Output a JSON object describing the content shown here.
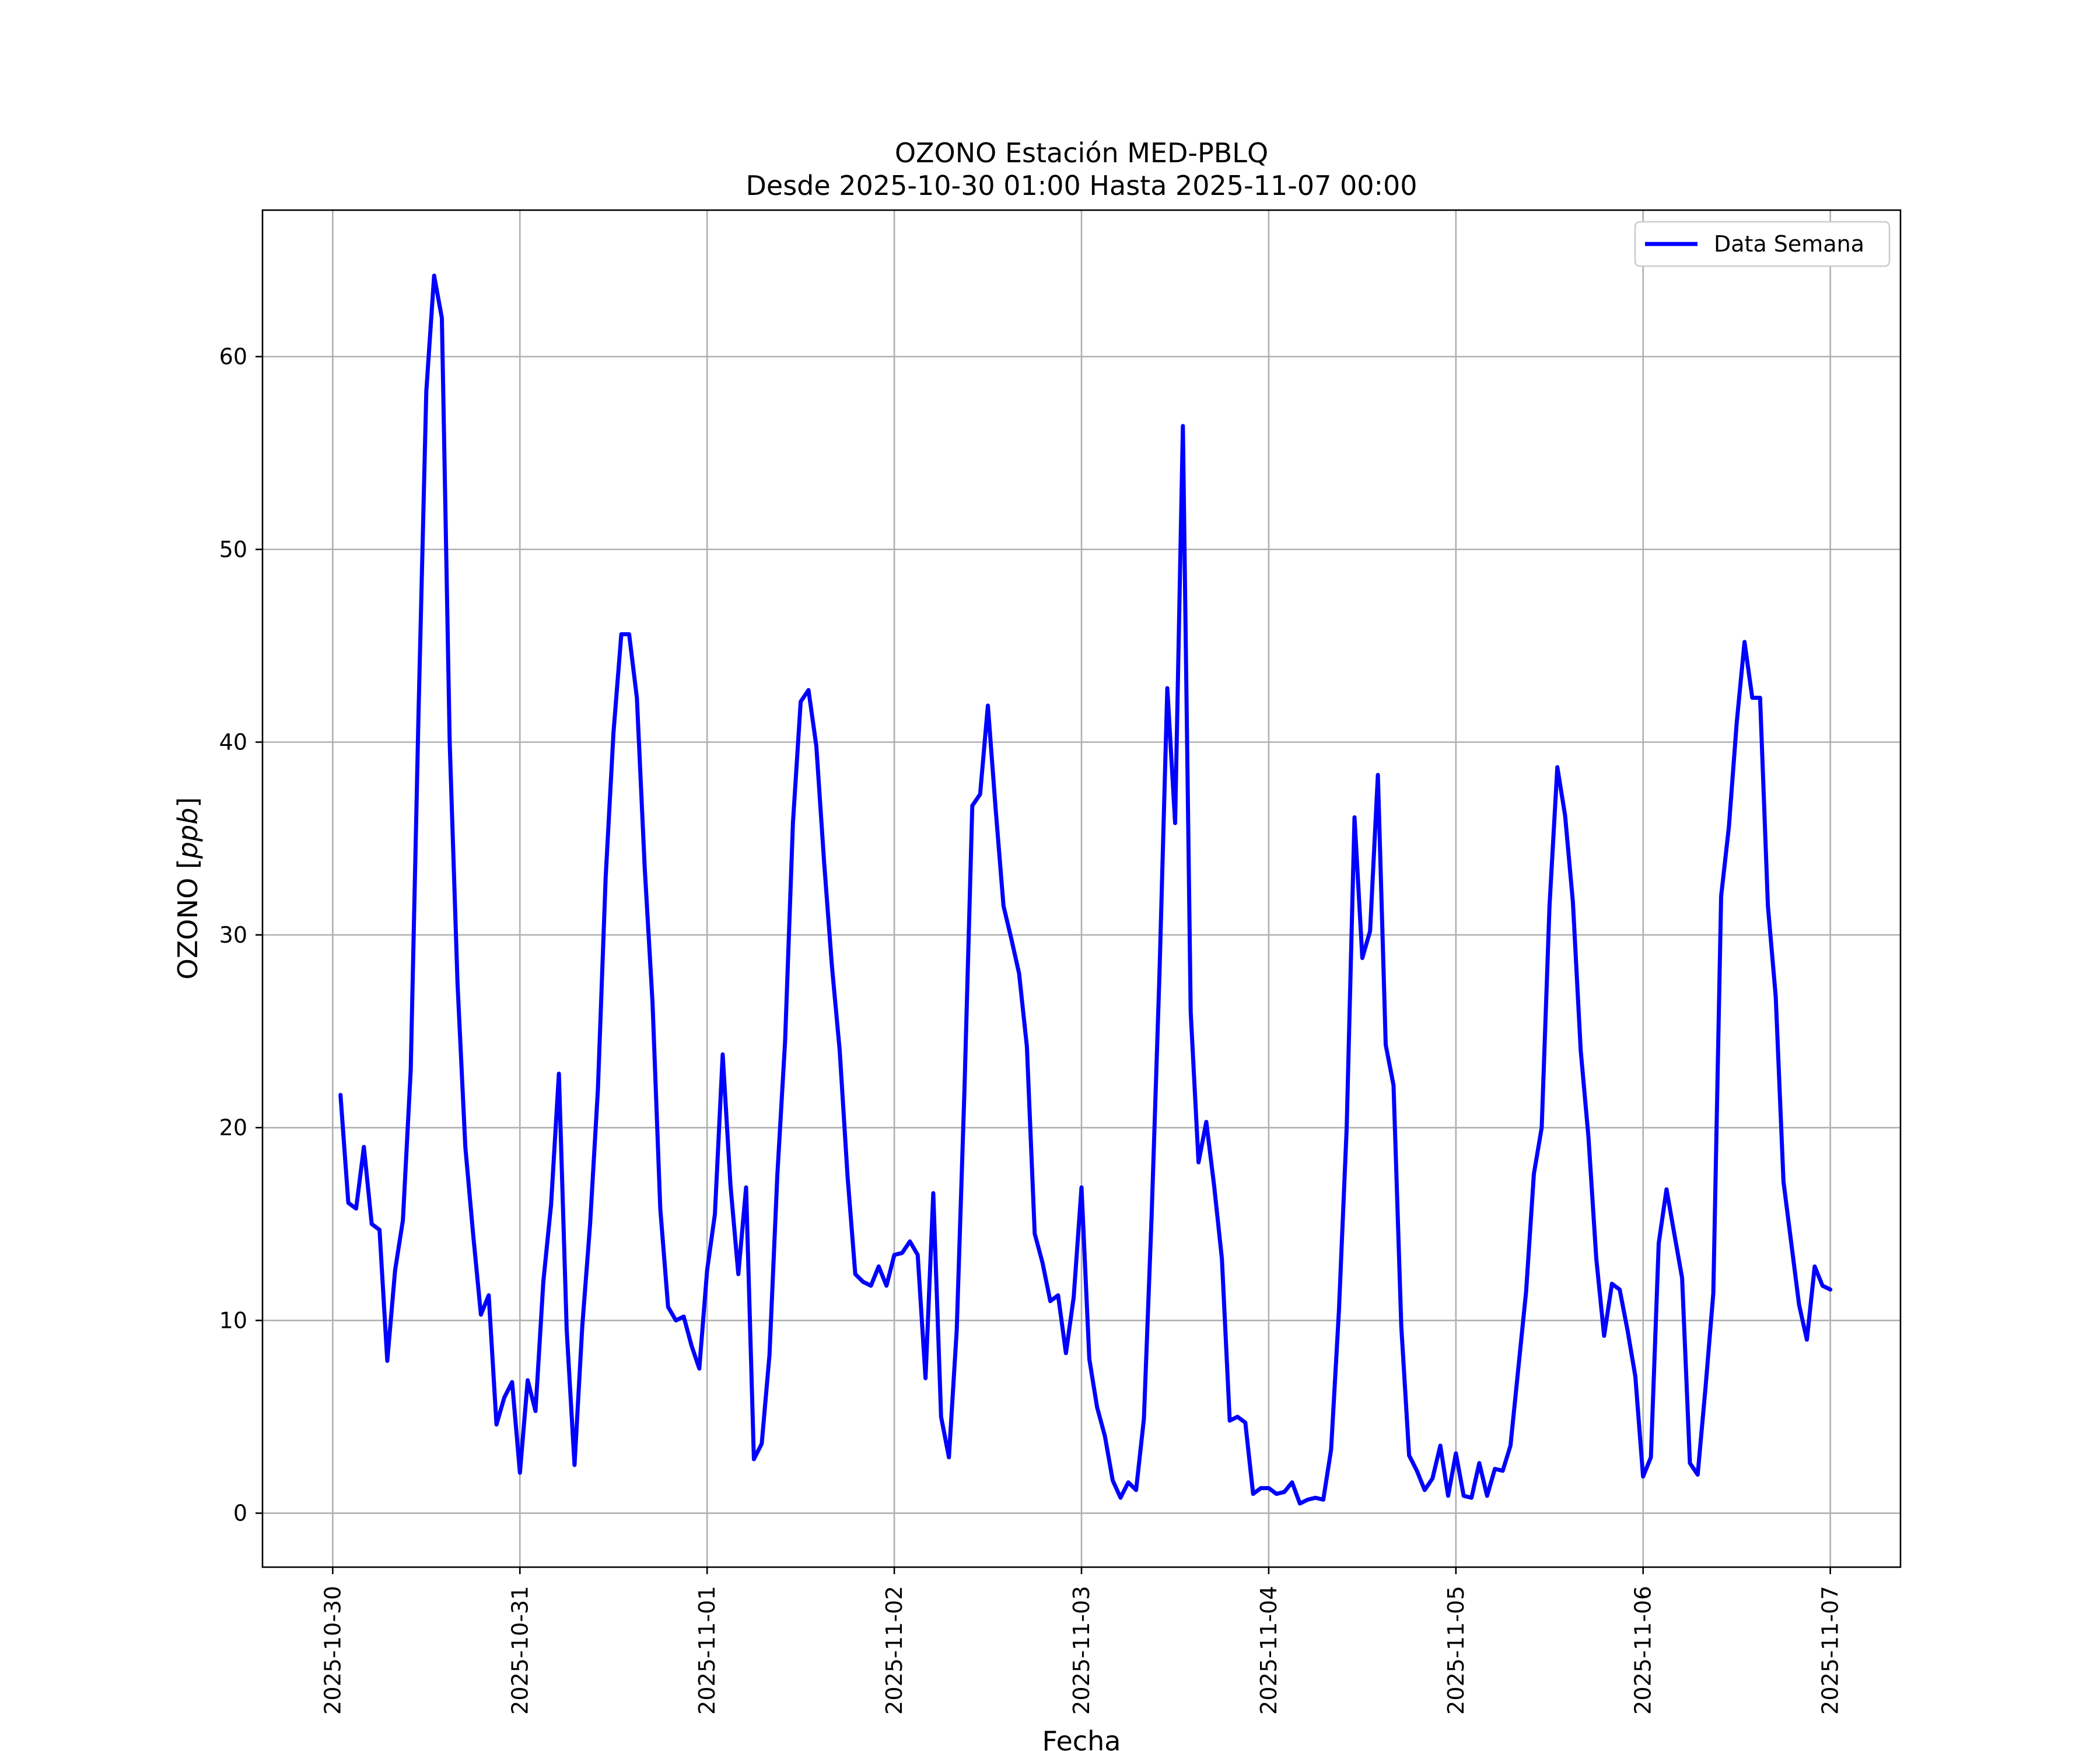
{
  "chart_data": {
    "type": "line",
    "title": [
      "OZONO Estación MED-PBLQ",
      "Desde 2025-10-30 01:00 Hasta 2025-11-07 00:00"
    ],
    "xlabel": "Fecha",
    "ylabel": "OZONO [ppb]",
    "xlim": [
      "2025-10-29 15:00",
      "2025-11-07 09:00"
    ],
    "ylim": [
      -2.8,
      67.6
    ],
    "yticks": [
      0,
      10,
      20,
      30,
      40,
      50,
      60
    ],
    "xticks": [
      "2025-10-30",
      "2025-10-31",
      "2025-11-01",
      "2025-11-02",
      "2025-11-03",
      "2025-11-04",
      "2025-11-05",
      "2025-11-06",
      "2025-11-07"
    ],
    "grid": true,
    "legend": {
      "position": "top-right",
      "entries": [
        "Data Semana"
      ]
    },
    "colors": {
      "line": "#0000ff",
      "grid": "#b0b0b0"
    },
    "series": [
      {
        "name": "Data Semana",
        "start": "2025-10-30 01:00",
        "interval": "1h",
        "values": [
          21.7,
          16.1,
          15.8,
          19.0,
          15.0,
          14.7,
          7.9,
          12.6,
          15.2,
          23.0,
          41.4,
          58.2,
          64.2,
          62.0,
          40.0,
          27.5,
          19.0,
          14.5,
          10.3,
          11.3,
          4.6,
          6.0,
          6.8,
          2.1,
          6.9,
          5.3,
          12.0,
          16.0,
          22.8,
          9.5,
          2.5,
          9.7,
          15.0,
          22.0,
          33.0,
          40.5,
          45.6,
          45.6,
          42.3,
          33.5,
          26.5,
          15.8,
          10.7,
          10.0,
          10.2,
          8.7,
          7.5,
          12.6,
          15.5,
          23.8,
          17.0,
          12.4,
          16.9,
          2.8,
          3.6,
          8.2,
          17.5,
          24.5,
          35.8,
          42.1,
          42.7,
          39.8,
          33.8,
          28.4,
          24.0,
          17.5,
          12.4,
          12.0,
          11.8,
          12.8,
          11.8,
          13.4,
          13.5,
          14.1,
          13.4,
          7.0,
          16.6,
          5.0,
          2.9,
          9.5,
          22.0,
          36.7,
          37.3,
          41.9,
          36.5,
          31.5,
          29.8,
          28.0,
          24.2,
          14.5,
          13.0,
          11.0,
          11.3,
          8.3,
          11.2,
          16.9,
          8.0,
          5.5,
          4.0,
          1.7,
          0.8,
          1.6,
          1.2,
          4.9,
          15.5,
          28.0,
          42.8,
          35.8,
          56.4,
          26.0,
          18.2,
          20.3,
          17.0,
          13.2,
          4.8,
          5.0,
          4.7,
          1.0,
          1.3,
          1.3,
          1.0,
          1.1,
          1.6,
          0.5,
          0.7,
          0.8,
          0.7,
          3.3,
          10.5,
          20.0,
          36.1,
          28.8,
          30.2,
          38.3,
          24.3,
          22.2,
          9.7,
          3.0,
          2.2,
          1.2,
          1.8,
          3.5,
          0.9,
          3.1,
          0.9,
          0.8,
          2.6,
          0.9,
          2.3,
          2.2,
          3.5,
          7.5,
          11.5,
          17.6,
          20.0,
          31.5,
          38.7,
          36.2,
          31.7,
          24.0,
          19.5,
          13.2,
          9.2,
          11.9,
          11.6,
          9.5,
          7.1,
          1.9,
          2.9,
          14.0,
          16.8,
          14.5,
          12.2,
          2.6,
          2.0,
          6.5,
          11.4,
          32.0,
          35.6,
          41.0,
          45.2,
          42.3,
          42.3,
          31.5,
          26.8,
          17.2,
          14.0,
          10.8,
          9.0,
          12.8,
          11.8,
          11.6
        ]
      }
    ]
  }
}
